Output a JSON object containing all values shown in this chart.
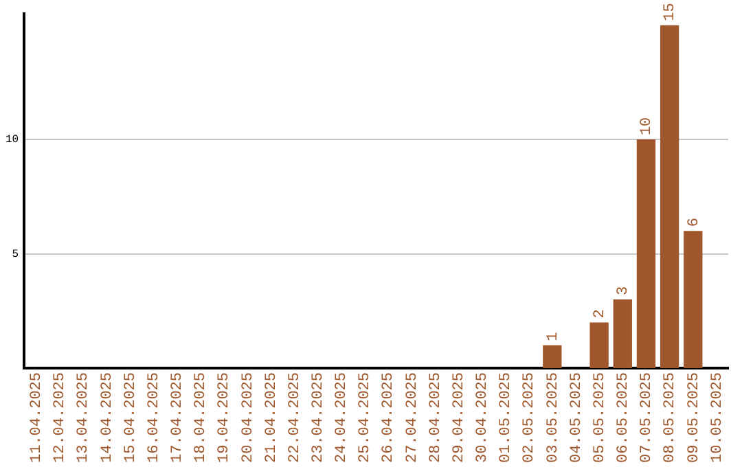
{
  "chart_data": {
    "type": "bar",
    "categories": [
      "11.04.2025",
      "12.04.2025",
      "13.04.2025",
      "14.04.2025",
      "15.04.2025",
      "16.04.2025",
      "17.04.2025",
      "18.04.2025",
      "19.04.2025",
      "20.04.2025",
      "21.04.2025",
      "22.04.2025",
      "23.04.2025",
      "24.04.2025",
      "25.04.2025",
      "26.04.2025",
      "27.04.2025",
      "28.04.2025",
      "29.04.2025",
      "30.04.2025",
      "01.05.2025",
      "02.05.2025",
      "03.05.2025",
      "04.05.2025",
      "05.05.2025",
      "06.05.2025",
      "07.05.2025",
      "08.05.2025",
      "09.05.2025",
      "10.05.2025"
    ],
    "values": [
      0,
      0,
      0,
      0,
      0,
      0,
      0,
      0,
      0,
      0,
      0,
      0,
      0,
      0,
      0,
      0,
      0,
      0,
      0,
      0,
      0,
      0,
      1,
      0,
      2,
      3,
      10,
      15,
      6,
      0
    ],
    "value_labels": [
      null,
      null,
      null,
      null,
      null,
      null,
      null,
      null,
      null,
      null,
      null,
      null,
      null,
      null,
      null,
      null,
      null,
      null,
      null,
      null,
      null,
      null,
      "1",
      null,
      "2",
      "3",
      "10",
      "15",
      "6",
      null
    ],
    "color": "#a0572b",
    "ylim": [
      0,
      15.5
    ],
    "yticks": [
      5,
      10
    ],
    "grid": "y",
    "legend": false
  }
}
